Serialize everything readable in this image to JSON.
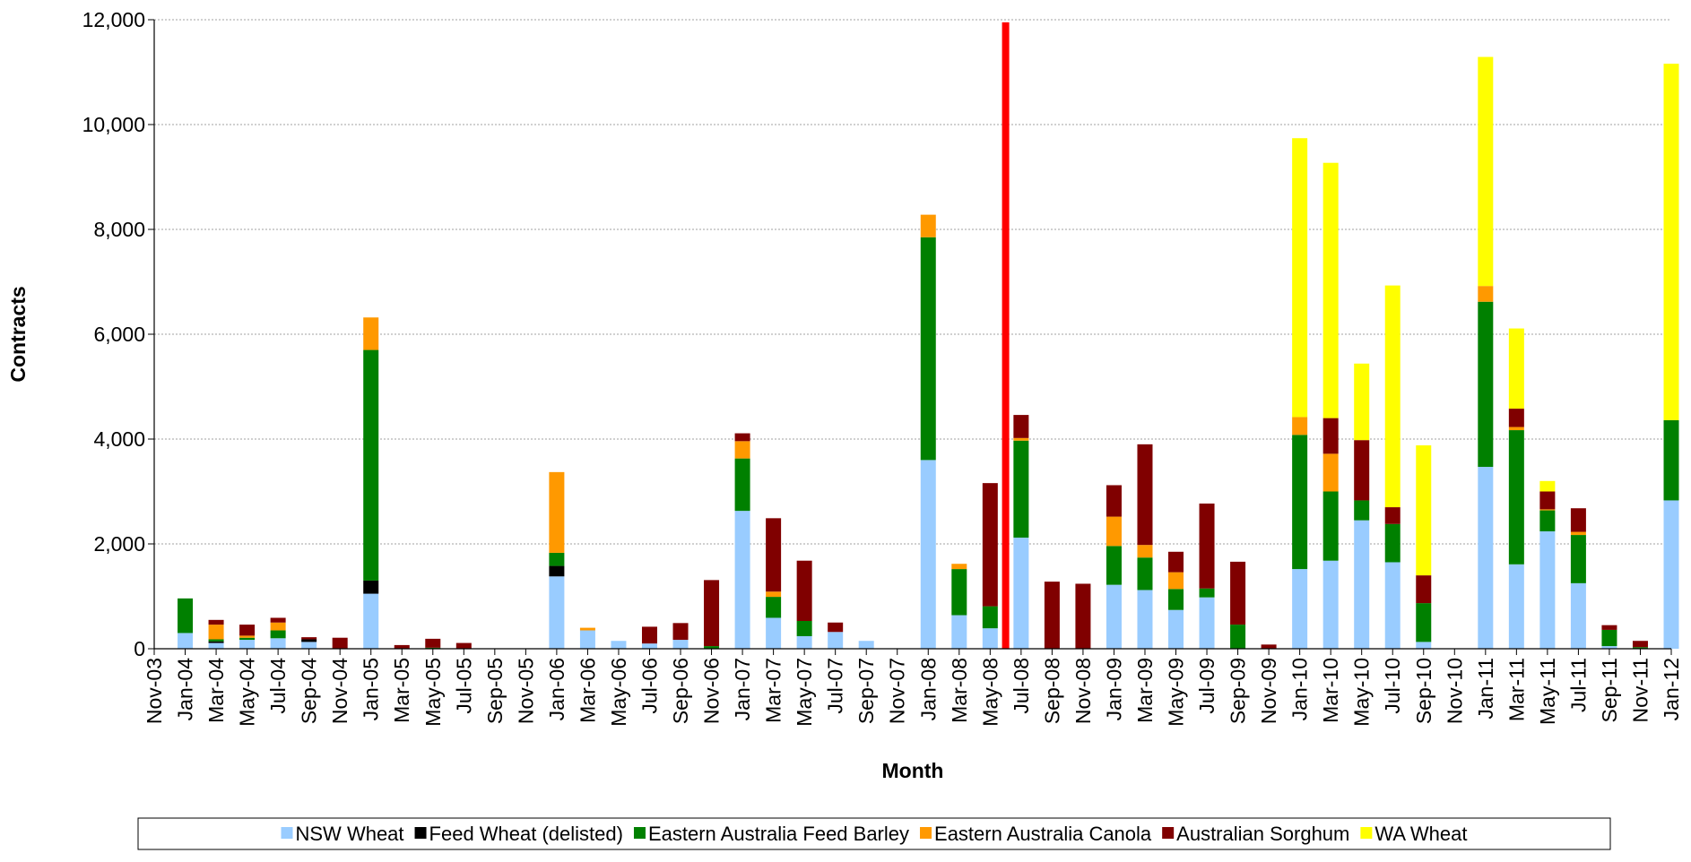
{
  "chart_data": {
    "type": "stacked_bar",
    "x_label": "Month",
    "y_label": "Contracts",
    "categories": [
      "Nov-03",
      "Jan-04",
      "Mar-04",
      "May-04",
      "Jul-04",
      "Sep-04",
      "Nov-04",
      "Jan-05",
      "Mar-05",
      "May-05",
      "Jul-05",
      "Sep-05",
      "Nov-05",
      "Jan-06",
      "Mar-06",
      "May-06",
      "Jul-06",
      "Sep-06",
      "Nov-06",
      "Jan-07",
      "Mar-07",
      "May-07",
      "Jul-07",
      "Sep-07",
      "Nov-07",
      "Jan-08",
      "Mar-08",
      "May-08",
      "Jul-08",
      "Sep-08",
      "Nov-08",
      "Jan-09",
      "Mar-09",
      "May-09",
      "Jul-09",
      "Sep-09",
      "Nov-09",
      "Jan-10",
      "Mar-10",
      "May-10",
      "Jul-10",
      "Sep-10",
      "Nov-10",
      "Jan-11",
      "Mar-11",
      "May-11",
      "Jul-11",
      "Sep-11",
      "Nov-11",
      "Jan-12"
    ],
    "series": [
      {
        "name": "NSW Wheat",
        "color": "#99ccff",
        "values": [
          0,
          300,
          110,
          170,
          200,
          130,
          0,
          1050,
          0,
          0,
          0,
          0,
          0,
          1380,
          350,
          150,
          100,
          170,
          0,
          2630,
          590,
          240,
          320,
          150,
          0,
          3600,
          640,
          390,
          2120,
          0,
          0,
          1220,
          1120,
          740,
          980,
          0,
          0,
          1520,
          1680,
          2450,
          1650,
          130,
          0,
          3470,
          1610,
          2240,
          1250,
          50,
          0,
          2830
        ]
      },
      {
        "name": "Feed Wheat (delisted)",
        "color": "#000000",
        "values": [
          0,
          0,
          30,
          0,
          0,
          50,
          0,
          250,
          0,
          0,
          0,
          0,
          0,
          200,
          0,
          0,
          0,
          0,
          0,
          0,
          0,
          0,
          0,
          0,
          0,
          0,
          0,
          0,
          0,
          0,
          0,
          0,
          0,
          0,
          0,
          0,
          0,
          0,
          0,
          0,
          0,
          0,
          0,
          0,
          0,
          0,
          0,
          0,
          0,
          0
        ]
      },
      {
        "name": "Eastern Australia Feed Barley",
        "color": "#008000",
        "values": [
          0,
          660,
          40,
          40,
          150,
          0,
          0,
          4400,
          0,
          20,
          0,
          0,
          0,
          250,
          0,
          0,
          0,
          0,
          50,
          1000,
          400,
          290,
          0,
          0,
          0,
          4250,
          880,
          420,
          1850,
          0,
          0,
          740,
          620,
          400,
          170,
          460,
          0,
          2560,
          1320,
          380,
          730,
          740,
          0,
          3150,
          2560,
          400,
          920,
          310,
          30,
          1530
        ]
      },
      {
        "name": "Eastern Australia Canola",
        "color": "#ff9900",
        "values": [
          0,
          0,
          280,
          40,
          150,
          0,
          0,
          620,
          0,
          0,
          0,
          0,
          0,
          1540,
          50,
          0,
          0,
          0,
          0,
          330,
          100,
          0,
          0,
          0,
          0,
          430,
          100,
          0,
          50,
          0,
          0,
          560,
          240,
          320,
          0,
          0,
          0,
          340,
          720,
          0,
          0,
          0,
          0,
          300,
          60,
          20,
          60,
          0,
          0,
          0
        ]
      },
      {
        "name": "Australian Sorghum",
        "color": "#800000",
        "values": [
          0,
          0,
          90,
          210,
          90,
          40,
          210,
          0,
          70,
          170,
          110,
          0,
          0,
          0,
          0,
          0,
          320,
          320,
          1260,
          150,
          1400,
          1150,
          180,
          0,
          0,
          0,
          0,
          2350,
          440,
          1280,
          1240,
          600,
          1920,
          390,
          1620,
          1200,
          80,
          0,
          680,
          1150,
          320,
          530,
          0,
          0,
          350,
          340,
          450,
          90,
          120,
          0
        ]
      },
      {
        "name": "WA Wheat",
        "color": "#ffff00",
        "values": [
          0,
          0,
          0,
          0,
          0,
          0,
          0,
          0,
          0,
          0,
          0,
          0,
          0,
          0,
          0,
          0,
          0,
          0,
          0,
          0,
          0,
          0,
          0,
          0,
          0,
          0,
          0,
          0,
          0,
          0,
          0,
          0,
          0,
          0,
          0,
          0,
          0,
          5320,
          4870,
          1460,
          4230,
          2480,
          0,
          4370,
          1530,
          200,
          0,
          0,
          0,
          6800
        ]
      }
    ],
    "marker": {
      "x": 27.5,
      "value": 11950,
      "color": "#ff0000"
    },
    "ylim": [
      0,
      12000
    ],
    "yticks": [
      0,
      {
        "value": 2000,
        "label": "2,000"
      },
      {
        "value": 4000,
        "label": "4,000"
      },
      {
        "value": 6000,
        "label": "6,000"
      },
      {
        "value": 8000,
        "label": "8,000"
      },
      {
        "value": 10000,
        "label": "10,000"
      },
      {
        "value": 12000,
        "label": "12,000"
      }
    ],
    "grid": true,
    "legend": "bottom"
  }
}
